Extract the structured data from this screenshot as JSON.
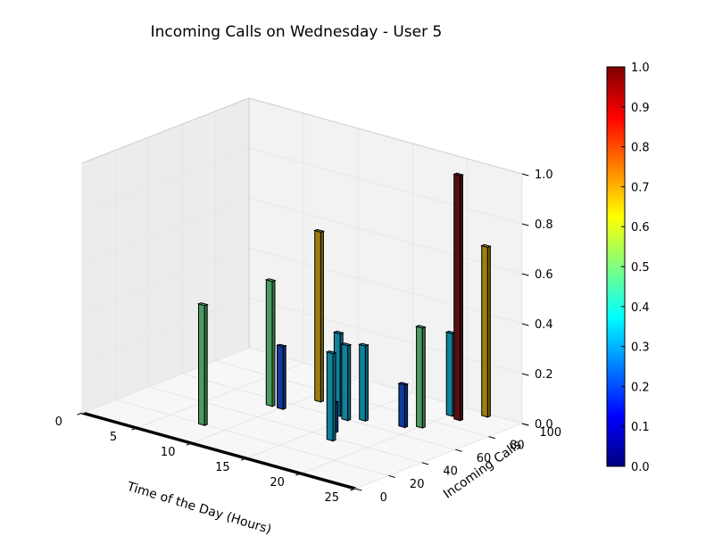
{
  "chart_data": {
    "type": "bar3d",
    "title": "Incoming Calls on Wednesday - User 5",
    "xlabel": "Time of the Day (Hours)",
    "ylabel": "Incoming Calls",
    "zlabel": "",
    "xlim": [
      0,
      25
    ],
    "ylim": [
      0,
      100
    ],
    "zlim": [
      0,
      1
    ],
    "x_ticks": [
      "0",
      "5",
      "10",
      "15",
      "20",
      "25"
    ],
    "y_ticks": [
      "0",
      "20",
      "40",
      "60",
      "80",
      "100"
    ],
    "z_ticks": [
      "0.0",
      "0.2",
      "0.4",
      "0.6",
      "0.8",
      "1.0"
    ],
    "colormap": "jet",
    "colorbar": {
      "range": [
        0,
        1
      ],
      "ticks": [
        "0.0",
        "0.1",
        "0.2",
        "0.3",
        "0.4",
        "0.5",
        "0.6",
        "0.7",
        "0.8",
        "0.9",
        "1.0"
      ]
    },
    "grid": true,
    "bars": [
      {
        "x": 8,
        "y": 20,
        "z": 0.48,
        "color_value": 0.48
      },
      {
        "x": 9,
        "y": 54,
        "z": 0.5,
        "color_value": 0.48
      },
      {
        "x": 10,
        "y": 54,
        "z": 0.25,
        "color_value": 0.2
      },
      {
        "x": 11,
        "y": 70,
        "z": 0.68,
        "color_value": 0.68
      },
      {
        "x": 14,
        "y": 62,
        "z": 0.33,
        "color_value": 0.33
      },
      {
        "x": 15,
        "y": 60,
        "z": 0.3,
        "color_value": 0.33
      },
      {
        "x": 16,
        "y": 64,
        "z": 0.3,
        "color_value": 0.33
      },
      {
        "x": 16,
        "y": 46,
        "z": 0.12,
        "color_value": 0.22
      },
      {
        "x": 17,
        "y": 38,
        "z": 0.35,
        "color_value": 0.33
      },
      {
        "x": 19,
        "y": 68,
        "z": 0.17,
        "color_value": 0.2
      },
      {
        "x": 20,
        "y": 90,
        "z": 0.33,
        "color_value": 0.33
      },
      {
        "x": 20,
        "y": 72,
        "z": 0.4,
        "color_value": 0.48
      },
      {
        "x": 21,
        "y": 88,
        "z": 0.98,
        "color_value": 1.0
      },
      {
        "x": 22,
        "y": 98,
        "z": 0.68,
        "color_value": 0.68
      }
    ]
  }
}
